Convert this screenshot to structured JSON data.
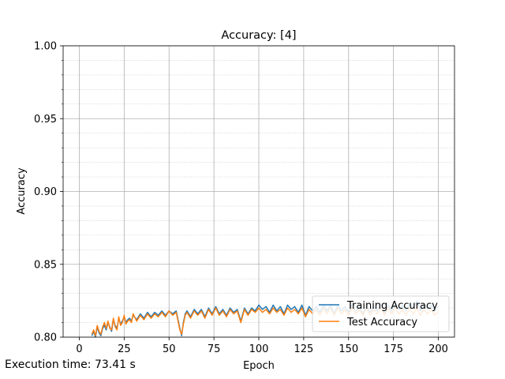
{
  "footer": {
    "execution_time": "Execution time: 73.41 s"
  },
  "chart_data": {
    "type": "line",
    "title": "Accuracy: [4]",
    "xlabel": "Epoch",
    "ylabel": "Accuracy",
    "xlim": [
      -9,
      209
    ],
    "ylim": [
      0.8,
      1.0
    ],
    "x_ticks": [
      0,
      25,
      50,
      75,
      100,
      125,
      150,
      175,
      200
    ],
    "y_ticks": [
      0.8,
      0.85,
      0.9,
      0.95,
      1.0
    ],
    "y_tick_labels": [
      "0.80",
      "0.85",
      "0.90",
      "0.95",
      "1.00"
    ],
    "grid": {
      "major": true,
      "minor": true
    },
    "legend_position": "lower-right",
    "colors": {
      "training": "#1f77b4",
      "test": "#ff7f0e"
    },
    "series": [
      {
        "name": "Training Accuracy",
        "color": "#1f77b4",
        "x": [
          7,
          8,
          9,
          10,
          11,
          12,
          13,
          14,
          15,
          16,
          17,
          18,
          19,
          20,
          21,
          22,
          23,
          24,
          25,
          26,
          27,
          28,
          29,
          30,
          32,
          34,
          36,
          38,
          40,
          42,
          44,
          46,
          48,
          50,
          52,
          54,
          55,
          56,
          57,
          58,
          59,
          60,
          62,
          64,
          66,
          68,
          70,
          72,
          74,
          76,
          78,
          80,
          82,
          84,
          86,
          88,
          90,
          92,
          94,
          96,
          98,
          100,
          102,
          104,
          106,
          108,
          110,
          112,
          114,
          116,
          118,
          120,
          122,
          124,
          126,
          128,
          130,
          132,
          134,
          136,
          138,
          140,
          142,
          144,
          146,
          148,
          150,
          152,
          154,
          156,
          158,
          160,
          162,
          164,
          166,
          168,
          170,
          172,
          174,
          176,
          178,
          180,
          182,
          184,
          186,
          188,
          190,
          192,
          194,
          196,
          198,
          200
        ],
        "y": [
          0.801,
          0.804,
          0.8,
          0.807,
          0.803,
          0.801,
          0.806,
          0.808,
          0.805,
          0.81,
          0.807,
          0.804,
          0.812,
          0.808,
          0.806,
          0.813,
          0.809,
          0.811,
          0.814,
          0.81,
          0.812,
          0.813,
          0.811,
          0.815,
          0.812,
          0.816,
          0.813,
          0.817,
          0.814,
          0.817,
          0.815,
          0.818,
          0.815,
          0.818,
          0.816,
          0.818,
          0.812,
          0.806,
          0.801,
          0.81,
          0.816,
          0.818,
          0.814,
          0.819,
          0.816,
          0.819,
          0.814,
          0.82,
          0.816,
          0.821,
          0.816,
          0.819,
          0.815,
          0.82,
          0.817,
          0.819,
          0.811,
          0.82,
          0.816,
          0.82,
          0.818,
          0.822,
          0.819,
          0.821,
          0.817,
          0.822,
          0.818,
          0.821,
          0.816,
          0.822,
          0.819,
          0.821,
          0.817,
          0.822,
          0.815,
          0.821,
          0.818,
          0.821,
          0.817,
          0.822,
          0.818,
          0.822,
          0.816,
          0.822,
          0.818,
          0.821,
          0.817,
          0.822,
          0.818,
          0.821,
          0.816,
          0.822,
          0.817,
          0.821,
          0.818,
          0.823,
          0.816,
          0.822,
          0.818,
          0.823,
          0.819,
          0.822,
          0.818,
          0.823,
          0.82,
          0.825,
          0.818,
          0.823,
          0.819,
          0.822,
          0.818,
          0.821
        ]
      },
      {
        "name": "Test Accuracy",
        "color": "#ff7f0e",
        "x": [
          7,
          8,
          9,
          10,
          11,
          12,
          13,
          14,
          15,
          16,
          17,
          18,
          19,
          20,
          21,
          22,
          23,
          24,
          25,
          26,
          27,
          28,
          29,
          30,
          32,
          34,
          36,
          38,
          40,
          42,
          44,
          46,
          48,
          50,
          52,
          54,
          55,
          56,
          57,
          58,
          59,
          60,
          62,
          64,
          66,
          68,
          70,
          72,
          74,
          76,
          78,
          80,
          82,
          84,
          86,
          88,
          90,
          92,
          94,
          96,
          98,
          100,
          102,
          104,
          106,
          108,
          110,
          112,
          114,
          116,
          118,
          120,
          122,
          124,
          126,
          128,
          130,
          132,
          134,
          136,
          138,
          140,
          142,
          144,
          146,
          148,
          150,
          152,
          154,
          156,
          158,
          160,
          162,
          164,
          166,
          168,
          170,
          172,
          174,
          176,
          178,
          180,
          182,
          184,
          186,
          188,
          190,
          192,
          194,
          196,
          198,
          200
        ],
        "y": [
          0.802,
          0.805,
          0.801,
          0.808,
          0.804,
          0.802,
          0.807,
          0.81,
          0.806,
          0.811,
          0.806,
          0.805,
          0.813,
          0.807,
          0.805,
          0.814,
          0.808,
          0.81,
          0.815,
          0.809,
          0.811,
          0.812,
          0.81,
          0.816,
          0.811,
          0.815,
          0.812,
          0.816,
          0.813,
          0.816,
          0.814,
          0.817,
          0.814,
          0.818,
          0.815,
          0.817,
          0.811,
          0.805,
          0.802,
          0.809,
          0.815,
          0.817,
          0.813,
          0.818,
          0.815,
          0.818,
          0.813,
          0.819,
          0.815,
          0.82,
          0.815,
          0.818,
          0.814,
          0.819,
          0.816,
          0.818,
          0.81,
          0.819,
          0.815,
          0.819,
          0.817,
          0.82,
          0.817,
          0.819,
          0.816,
          0.82,
          0.817,
          0.819,
          0.815,
          0.82,
          0.817,
          0.819,
          0.816,
          0.82,
          0.814,
          0.819,
          0.816,
          0.819,
          0.815,
          0.82,
          0.816,
          0.82,
          0.815,
          0.82,
          0.816,
          0.819,
          0.815,
          0.82,
          0.816,
          0.819,
          0.815,
          0.82,
          0.815,
          0.819,
          0.816,
          0.82,
          0.815,
          0.82,
          0.816,
          0.82,
          0.816,
          0.819,
          0.815,
          0.82,
          0.816,
          0.82,
          0.815,
          0.819,
          0.816,
          0.819,
          0.815,
          0.818
        ]
      }
    ]
  }
}
